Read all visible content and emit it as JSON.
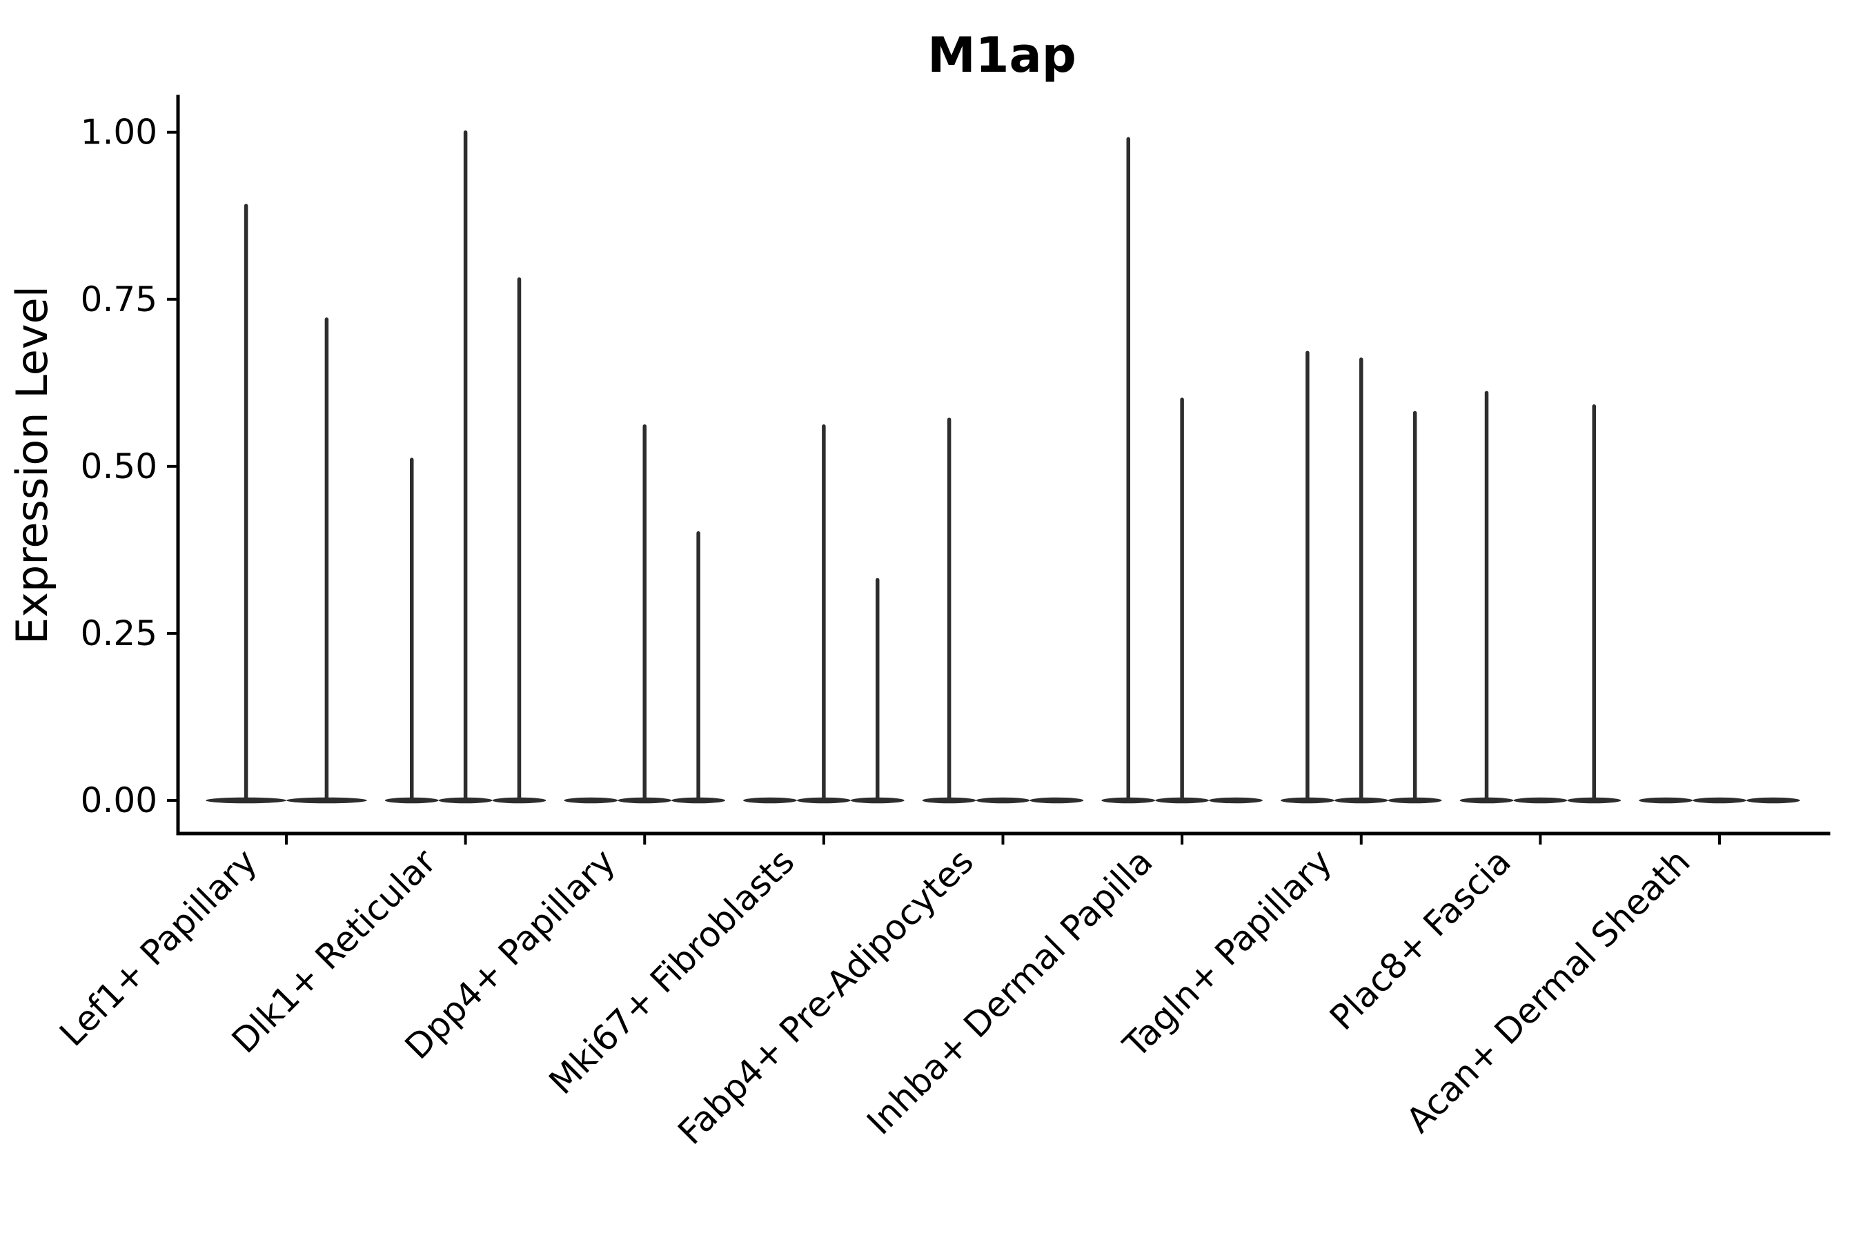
{
  "figure": {
    "background": "#ffffff"
  },
  "chart_data": {
    "type": "violin",
    "title": "M1ap",
    "xlabel": "",
    "ylabel": "Expression Level",
    "ylim": [
      -0.05,
      1.05
    ],
    "yticks": [
      "0.00",
      "0.25",
      "0.50",
      "0.75",
      "1.00"
    ],
    "ytick_values": [
      0.0,
      0.25,
      0.5,
      0.75,
      1.0
    ],
    "grid": false,
    "legend": false,
    "categories": [
      "Lef1+ Papillary",
      "Dlk1+ Reticular",
      "Dpp4+ Papillary",
      "Mki67+ Fibroblasts",
      "Fabp4+ Pre-Adipocytes",
      "Inhba+ Dermal Papilla",
      "Tagln+ Papillary",
      "Plac8+ Fascia",
      "Acan+ Dermal Sheath"
    ],
    "groups": [
      {
        "category": "Lef1+ Papillary",
        "violin_max_values": [
          0.89,
          0.72
        ]
      },
      {
        "category": "Dlk1+ Reticular",
        "violin_max_values": [
          0.51,
          1.0,
          0.78
        ]
      },
      {
        "category": "Dpp4+ Papillary",
        "violin_max_values": [
          0.0,
          0.56,
          0.4
        ]
      },
      {
        "category": "Mki67+ Fibroblasts",
        "violin_max_values": [
          0.0,
          0.56,
          0.33
        ]
      },
      {
        "category": "Fabp4+ Pre-Adipocytes",
        "violin_max_values": [
          0.57,
          0.0,
          0.0
        ]
      },
      {
        "category": "Inhba+ Dermal Papilla",
        "violin_max_values": [
          0.99,
          0.6,
          0.0
        ]
      },
      {
        "category": "Tagln+ Papillary",
        "violin_max_values": [
          0.67,
          0.66,
          0.58
        ]
      },
      {
        "category": "Plac8+ Fascia",
        "violin_max_values": [
          0.61,
          0.0,
          0.59
        ]
      },
      {
        "category": "Acan+ Dermal Sheath",
        "violin_max_values": [
          0.0,
          0.0,
          0.0
        ]
      }
    ],
    "description": "Needle-thin violin plots: expression concentrated at 0 with thin density spikes up to each violin's max value",
    "colors": {
      "violin_ink": "#2d2d2d",
      "axis": "#000000",
      "text": "#000000",
      "background": "#ffffff"
    }
  }
}
